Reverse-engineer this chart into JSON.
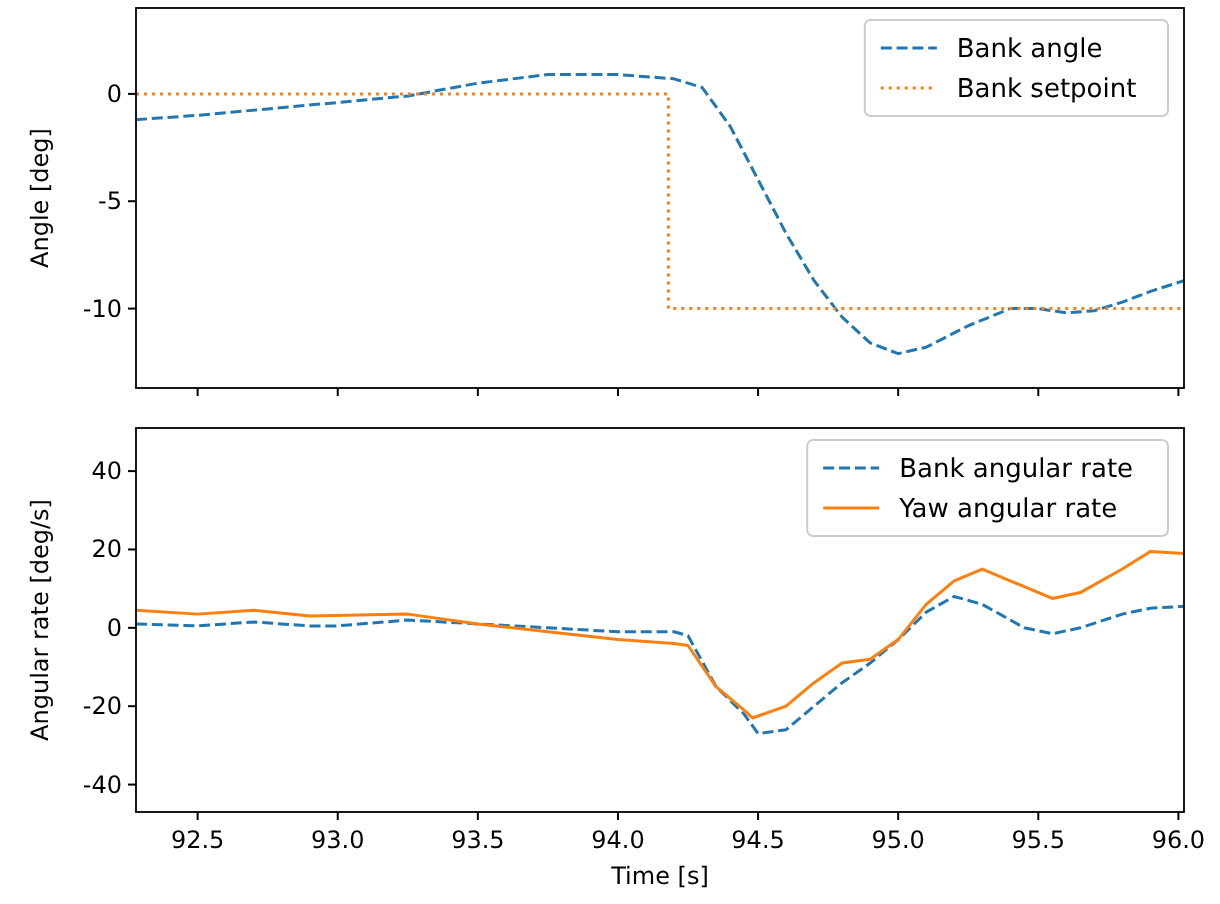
{
  "chart_data": [
    {
      "type": "line",
      "ylabel": "Angle [deg]",
      "xlim": [
        92.28,
        96.02
      ],
      "xticks": [
        92.5,
        93,
        93.5,
        94,
        94.5,
        95,
        95.5,
        96
      ],
      "ylim": [
        -13.7,
        4.0
      ],
      "yticks": [
        -10,
        -5,
        0
      ],
      "tick_labels": "y",
      "legend": "top right",
      "grid": false,
      "series": [
        {
          "name": "Bank angle",
          "color": "#1f77b4",
          "line_style": "dashed",
          "x": [
            92.28,
            92.5,
            92.75,
            93.0,
            93.25,
            93.5,
            93.75,
            94.0,
            94.2,
            94.3,
            94.4,
            94.5,
            94.6,
            94.7,
            94.8,
            94.9,
            95.0,
            95.1,
            95.25,
            95.4,
            95.5,
            95.6,
            95.7,
            95.8,
            95.9,
            96.02
          ],
          "values": [
            -1.2,
            -1.0,
            -0.7,
            -0.4,
            -0.1,
            0.5,
            0.9,
            0.9,
            0.7,
            0.3,
            -1.5,
            -4.0,
            -6.5,
            -8.7,
            -10.4,
            -11.6,
            -12.1,
            -11.8,
            -10.8,
            -10.0,
            -10.0,
            -10.2,
            -10.1,
            -9.7,
            -9.2,
            -8.7
          ]
        },
        {
          "name": "Bank setpoint",
          "color": "#ff7f0e",
          "type": "step",
          "line_style": "dotted",
          "x": [
            92.28,
            94.18,
            96.02
          ],
          "values": [
            0,
            -10,
            -10
          ]
        }
      ]
    },
    {
      "type": "line",
      "xlabel": "Time [s]",
      "ylabel": "Angular rate [deg/s]",
      "xlim": [
        92.28,
        96.02
      ],
      "xticks": [
        92.5,
        {
          "value": 93,
          "label": "93.0"
        },
        93.5,
        {
          "value": 94,
          "label": "94.0"
        },
        94.5,
        {
          "value": 95,
          "label": "95.0"
        },
        95.5,
        {
          "value": 96,
          "label": "96.0"
        }
      ],
      "ylim": [
        -47,
        51
      ],
      "yticks": [
        -40,
        -20,
        0,
        20,
        40
      ],
      "legend": "top right",
      "grid": false,
      "series": [
        {
          "name": "Bank angular rate",
          "color": "#1f77b4",
          "line_style": "dashed",
          "x": [
            92.28,
            92.5,
            92.7,
            92.9,
            93.0,
            93.25,
            93.5,
            93.75,
            94.0,
            94.2,
            94.25,
            94.35,
            94.45,
            94.5,
            94.6,
            94.7,
            94.8,
            94.9,
            95.0,
            95.1,
            95.2,
            95.3,
            95.45,
            95.55,
            95.65,
            95.8,
            95.9,
            96.02
          ],
          "values": [
            1,
            0.5,
            1.5,
            0.5,
            0.5,
            2,
            1,
            0,
            -1,
            -1,
            -2,
            -15,
            -22,
            -27,
            -26,
            -20,
            -14,
            -9,
            -3,
            4,
            8,
            6,
            0,
            -1.5,
            0,
            3.5,
            5,
            5.5
          ]
        },
        {
          "name": "Yaw angular rate",
          "color": "#ff7f0e",
          "line_style": "solid",
          "x": [
            92.28,
            92.5,
            92.7,
            92.9,
            93.25,
            93.5,
            93.75,
            94.0,
            94.2,
            94.25,
            94.35,
            94.45,
            94.48,
            94.6,
            94.7,
            94.8,
            94.9,
            95.0,
            95.1,
            95.2,
            95.3,
            95.4,
            95.55,
            95.65,
            95.8,
            95.9,
            96.02
          ],
          "values": [
            4.5,
            3.5,
            4.5,
            3,
            3.5,
            1,
            -1,
            -3,
            -4,
            -4.5,
            -15,
            -21,
            -23,
            -20,
            -14,
            -9,
            -8,
            -3,
            6,
            12,
            15,
            12,
            7.5,
            9,
            15,
            19.5,
            19
          ]
        }
      ]
    }
  ]
}
